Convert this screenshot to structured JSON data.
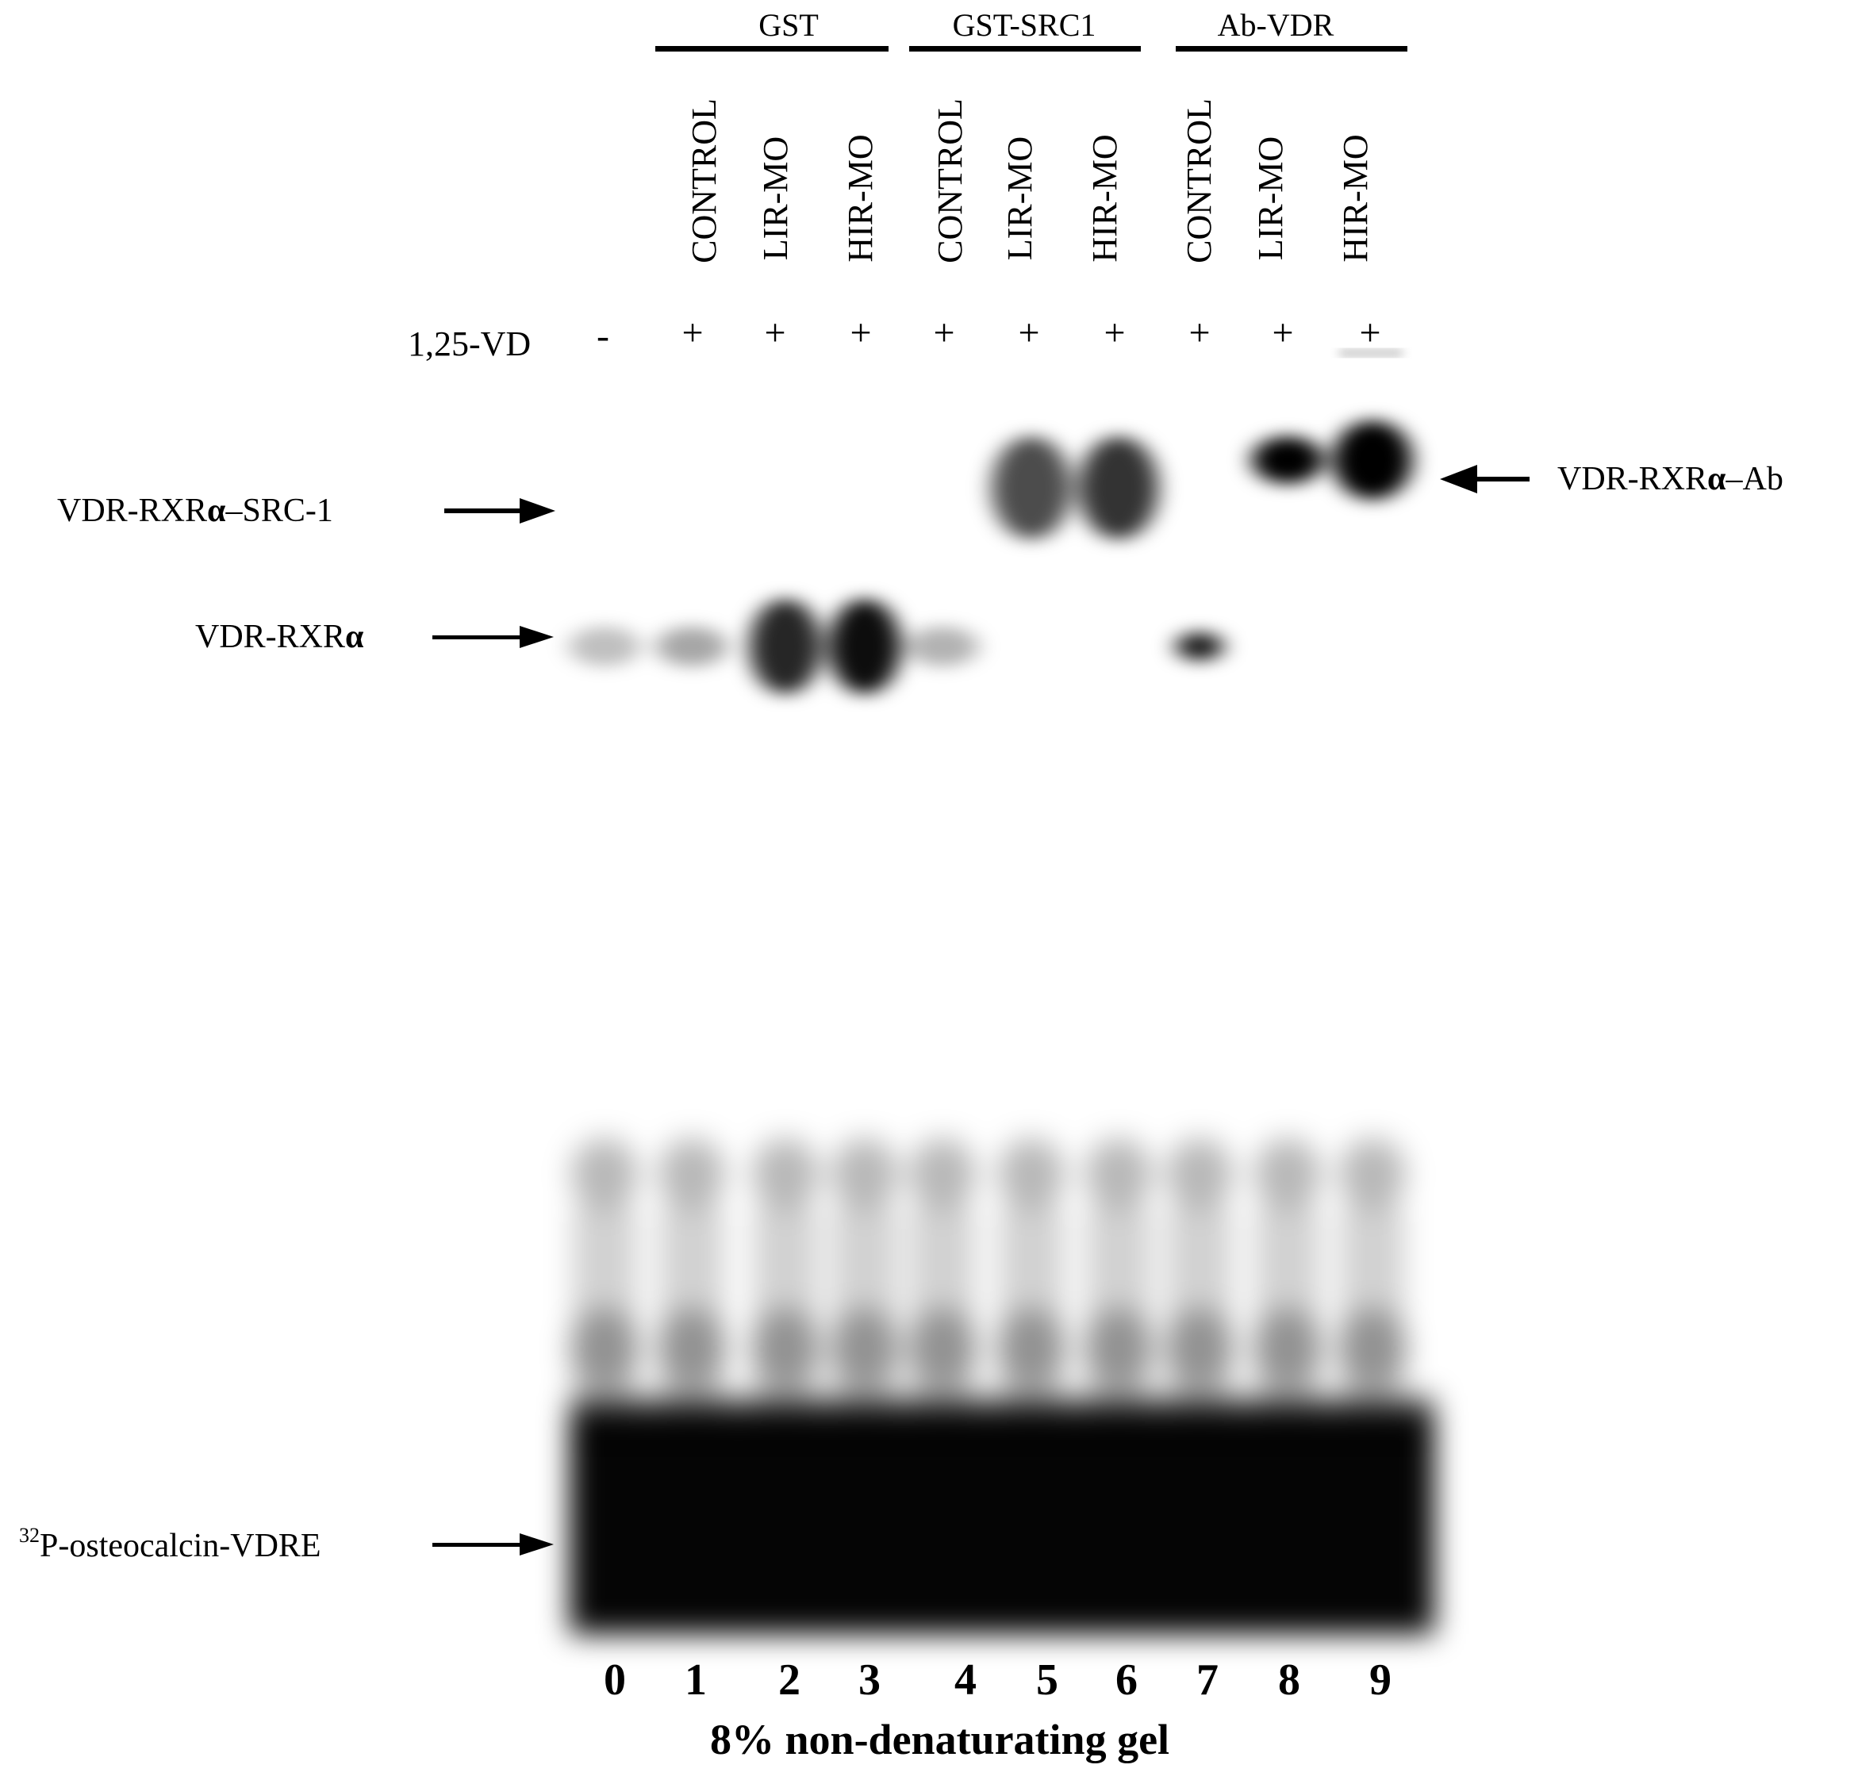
{
  "groups": [
    {
      "label": "GST"
    },
    {
      "label": "GST-SRC1"
    },
    {
      "label": "Ab-VDR"
    }
  ],
  "lanes": [
    {
      "number": "0",
      "label": "",
      "vd": "-"
    },
    {
      "number": "1",
      "label": "CONTROL",
      "vd": "+"
    },
    {
      "number": "2",
      "label": "LIR-MO",
      "vd": "+"
    },
    {
      "number": "3",
      "label": "HIR-MO",
      "vd": "+"
    },
    {
      "number": "4",
      "label": "CONTROL",
      "vd": "+"
    },
    {
      "number": "5",
      "label": "LIR-MO",
      "vd": "+"
    },
    {
      "number": "6",
      "label": "HIR-MO",
      "vd": "+"
    },
    {
      "number": "7",
      "label": "CONTROL",
      "vd": "+"
    },
    {
      "number": "8",
      "label": "LIR-MO",
      "vd": "+"
    },
    {
      "number": "9",
      "label": "HIR-MO",
      "vd": "+"
    }
  ],
  "treatment_row_label": "1,25-VD",
  "band_labels": {
    "vdr_rxr_src1_prefix": "VDR-RXR",
    "vdr_rxr_src1_suffix": "–SRC-1",
    "vdr_rxr_prefix": "VDR-RXR",
    "vdr_rxr_ab_prefix": "VDR-RXR",
    "vdr_rxr_ab_suffix": "–Ab",
    "alpha": "α",
    "probe_sup": "32",
    "probe_main": "P-osteocalcin-VDRE"
  },
  "caption": "8% non-denaturating gel",
  "band_intensity": {
    "vdr_rxr": [
      0.25,
      0.35,
      0.85,
      0.95,
      0.3,
      0,
      0,
      0.9,
      0,
      0
    ],
    "vdr_rxr_src1": [
      0,
      0,
      0,
      0,
      0,
      0.7,
      0.8,
      0,
      0,
      0
    ],
    "vdr_rxr_ab": [
      0,
      0,
      0,
      0,
      0,
      0,
      0,
      0,
      1.0,
      1.0
    ]
  },
  "colors": {
    "band": "#000000",
    "background": "#ffffff",
    "line": "#000000"
  }
}
